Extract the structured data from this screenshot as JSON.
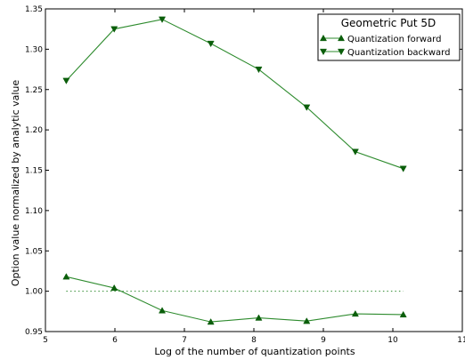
{
  "chart_data": {
    "type": "line",
    "title": "",
    "xlabel": "Log of the number of quantization points",
    "ylabel": "Option value normalized by analytic value",
    "xlim": [
      5,
      11
    ],
    "ylim": [
      0.95,
      1.35
    ],
    "x_ticks": [
      5,
      6,
      7,
      8,
      9,
      10,
      11
    ],
    "x_tick_labels": [
      "5",
      "6",
      "7",
      "8",
      "9",
      "10",
      "11"
    ],
    "y_ticks": [
      0.95,
      1.0,
      1.05,
      1.1,
      1.15,
      1.2,
      1.25,
      1.3,
      1.35
    ],
    "y_tick_labels": [
      "0.95",
      "1.00",
      "1.05",
      "1.10",
      "1.15",
      "1.20",
      "1.25",
      "1.30",
      "1.35"
    ],
    "grid": false,
    "legend": {
      "title": "Geometric Put 5D",
      "placement": "top-right"
    },
    "series": [
      {
        "name": "Quantization forward",
        "marker": "triangle-up",
        "color": "#2e8b2e",
        "marker_color": "#0b5e0b",
        "x": [
          5.3,
          5.99,
          6.68,
          7.38,
          8.07,
          8.76,
          9.46,
          10.15
        ],
        "y": [
          1.018,
          1.004,
          0.976,
          0.962,
          0.967,
          0.963,
          0.972,
          0.971
        ]
      },
      {
        "name": "Quantization backward",
        "marker": "triangle-down",
        "color": "#2e8b2e",
        "marker_color": "#0b5e0b",
        "x": [
          5.3,
          5.99,
          6.68,
          7.38,
          8.07,
          8.76,
          9.46,
          10.15
        ],
        "y": [
          1.261,
          1.325,
          1.337,
          1.307,
          1.275,
          1.228,
          1.173,
          1.152
        ]
      },
      {
        "name": "",
        "style": "dotted",
        "color": "#2e8b2e",
        "x": [
          5.3,
          10.15
        ],
        "y": [
          1.0,
          1.0
        ]
      }
    ]
  }
}
